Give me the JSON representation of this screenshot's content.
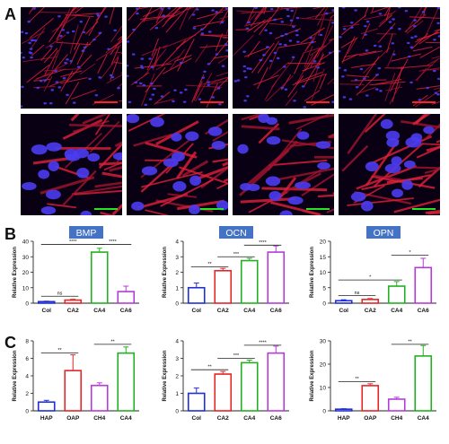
{
  "figure": {
    "panel_labels": [
      "A",
      "B",
      "C"
    ],
    "colors": {
      "blue": "#1f2fd6",
      "red": "#e32626",
      "green": "#22b022",
      "purple": "#b53bd9",
      "title_box": "#4472c4",
      "scalebar_red": "#ff2020",
      "scalebar_green": "#22e622"
    }
  },
  "panel_a": {
    "description_icons": [
      "fluorescence-micrograph"
    ],
    "rows": [
      {
        "row": "low-magnification",
        "tiles": 4,
        "scalebar_color": "#ff2020"
      },
      {
        "row": "high-magnification",
        "tiles": 4,
        "scalebar_color": "#22e622"
      }
    ]
  },
  "chart_data": [
    {
      "type": "bar",
      "panel": "B",
      "title": "BMP",
      "ylabel": "Relative Expression",
      "ylim": [
        0,
        40
      ],
      "yticks": [
        0,
        10,
        20,
        30,
        40
      ],
      "categories": [
        "Col",
        "CA2",
        "CA4",
        "CA6"
      ],
      "values": [
        1.0,
        2.0,
        33.0,
        7.5
      ],
      "errors": [
        0.3,
        0.5,
        2.5,
        3.5
      ],
      "colors": [
        "#1f2fd6",
        "#e32626",
        "#22b022",
        "#b53bd9"
      ],
      "brackets": [
        {
          "from": 0,
          "to": 1,
          "label": "ns",
          "level": 4.5
        },
        {
          "from": 0,
          "to": 2,
          "label": "****",
          "level": 38
        },
        {
          "from": 2,
          "to": 3,
          "label": "****",
          "level": 38
        }
      ]
    },
    {
      "type": "bar",
      "panel": "B",
      "title": "OCN",
      "ylabel": "Relative Expression",
      "ylim": [
        0,
        4
      ],
      "yticks": [
        0,
        1,
        2,
        3,
        4
      ],
      "categories": [
        "Col",
        "CA2",
        "CA4",
        "CA6"
      ],
      "values": [
        1.0,
        2.1,
        2.75,
        3.3
      ],
      "errors": [
        0.3,
        0.15,
        0.15,
        0.4
      ],
      "colors": [
        "#1f2fd6",
        "#e32626",
        "#22b022",
        "#b53bd9"
      ],
      "brackets": [
        {
          "from": 0,
          "to": 1,
          "label": "**",
          "level": 2.35
        },
        {
          "from": 1,
          "to": 2,
          "label": "***",
          "level": 3.0
        },
        {
          "from": 2,
          "to": 3,
          "label": "****",
          "level": 3.75
        }
      ]
    },
    {
      "type": "bar",
      "panel": "B",
      "title": "OPN",
      "ylabel": "Relative Expression",
      "ylim": [
        0,
        20
      ],
      "yticks": [
        0,
        5,
        10,
        15,
        20
      ],
      "categories": [
        "Col",
        "CA2",
        "CA4",
        "CA6"
      ],
      "values": [
        0.8,
        1.2,
        5.5,
        11.5
      ],
      "errors": [
        0.3,
        0.3,
        1.5,
        3.0
      ],
      "colors": [
        "#1f2fd6",
        "#e32626",
        "#22b022",
        "#b53bd9"
      ],
      "brackets": [
        {
          "from": 0,
          "to": 1,
          "label": "ns",
          "level": 2.5
        },
        {
          "from": 0,
          "to": 2,
          "label": "*",
          "level": 7.5
        },
        {
          "from": 2,
          "to": 3,
          "label": "*",
          "level": 15.5
        }
      ]
    },
    {
      "type": "bar",
      "panel": "C",
      "title": "",
      "ylabel": "Relative Expression",
      "ylim": [
        0,
        8
      ],
      "yticks": [
        0,
        2,
        4,
        6,
        8
      ],
      "categories": [
        "HAP",
        "OAP",
        "CH4",
        "CA4"
      ],
      "values": [
        1.0,
        4.6,
        2.9,
        6.6
      ],
      "errors": [
        0.2,
        1.8,
        0.3,
        0.7
      ],
      "colors": [
        "#1f2fd6",
        "#e32626",
        "#b53bd9",
        "#22b022"
      ],
      "brackets": [
        {
          "from": 0,
          "to": 1,
          "label": "**",
          "level": 6.6
        },
        {
          "from": 2,
          "to": 3,
          "label": "**",
          "level": 7.6
        }
      ]
    },
    {
      "type": "bar",
      "panel": "C",
      "title": "",
      "ylabel": "Relative Expression",
      "ylim": [
        0,
        4
      ],
      "yticks": [
        0,
        1,
        2,
        3,
        4
      ],
      "categories": [
        "Col",
        "CA2",
        "CA4",
        "CA6"
      ],
      "values": [
        1.0,
        2.1,
        2.75,
        3.3
      ],
      "errors": [
        0.3,
        0.15,
        0.15,
        0.4
      ],
      "colors": [
        "#1f2fd6",
        "#e32626",
        "#22b022",
        "#b53bd9"
      ],
      "brackets": [
        {
          "from": 0,
          "to": 1,
          "label": "**",
          "level": 2.35
        },
        {
          "from": 1,
          "to": 2,
          "label": "***",
          "level": 3.0
        },
        {
          "from": 2,
          "to": 3,
          "label": "****",
          "level": 3.75
        }
      ]
    },
    {
      "type": "bar",
      "panel": "C",
      "title": "",
      "ylabel": "Relative Expression",
      "ylim": [
        0,
        30
      ],
      "yticks": [
        0,
        10,
        20,
        30
      ],
      "categories": [
        "HAP",
        "OAP",
        "CH4",
        "CA4"
      ],
      "values": [
        0.7,
        10.8,
        5.0,
        23.5
      ],
      "errors": [
        0.2,
        0.8,
        0.8,
        4.5
      ],
      "colors": [
        "#1f2fd6",
        "#e32626",
        "#b53bd9",
        "#22b022"
      ],
      "brackets": [
        {
          "from": 0,
          "to": 1,
          "label": "**",
          "level": 12.5
        },
        {
          "from": 2,
          "to": 3,
          "label": "**",
          "level": 28.5
        }
      ]
    }
  ]
}
